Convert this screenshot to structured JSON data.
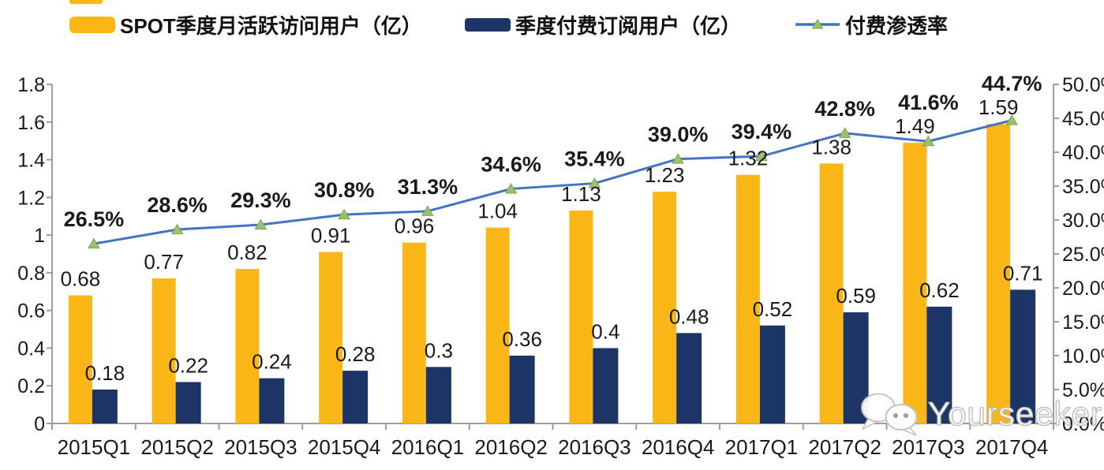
{
  "legend": [
    {
      "label": "SPOT季度月活跃访问用户（亿）",
      "color": "#FBB716",
      "type": "bar"
    },
    {
      "label": "季度付费订阅用户（亿）",
      "color": "#1C3564",
      "type": "bar"
    },
    {
      "label": "付费渗透率",
      "color": "#4472C4",
      "marker_color": "#9CC268",
      "type": "line"
    }
  ],
  "watermark": {
    "text": "Yourseeker"
  },
  "colors": {
    "mau_bar": "#FBB716",
    "sub_bar": "#1C3564",
    "penetration_line": "#4472C4",
    "penetration_marker": "#9CC268",
    "penetration_marker_edge": "#7FA650",
    "axis": "#9E9E9E",
    "label_text": "#1A1A1A"
  },
  "chart_data": {
    "type": "bar",
    "subtype": "grouped-bars-with-line",
    "categories": [
      "2015Q1",
      "2015Q2",
      "2015Q3",
      "2015Q4",
      "2016Q1",
      "2016Q2",
      "2016Q3",
      "2016Q4",
      "2017Q1",
      "2017Q2",
      "2017Q3",
      "2017Q4"
    ],
    "series": [
      {
        "name": "SPOT季度月活跃访问用户（亿）",
        "type": "bar",
        "axis": "left",
        "color": "#FBB716",
        "values": [
          0.68,
          0.77,
          0.82,
          0.91,
          0.96,
          1.04,
          1.13,
          1.23,
          1.32,
          1.38,
          1.49,
          1.59
        ],
        "value_labels": [
          "0.68",
          "0.77",
          "0.82",
          "0.91",
          "0.96",
          "1.04",
          "1.13",
          "1.23",
          "1.32",
          "1.38",
          "1.49",
          "1.59"
        ]
      },
      {
        "name": "季度付费订阅用户（亿）",
        "type": "bar",
        "axis": "left",
        "color": "#1C3564",
        "values": [
          0.18,
          0.22,
          0.24,
          0.28,
          0.3,
          0.36,
          0.4,
          0.48,
          0.52,
          0.59,
          0.62,
          0.71
        ],
        "value_labels": [
          "0.18",
          "0.22",
          "0.24",
          "0.28",
          "0.3",
          "0.36",
          "0.4",
          "0.48",
          "0.52",
          "0.59",
          "0.62",
          "0.71"
        ]
      },
      {
        "name": "付费渗透率",
        "type": "line",
        "axis": "right",
        "color": "#4472C4",
        "marker": "triangle",
        "marker_color": "#9CC268",
        "values": [
          26.5,
          28.6,
          29.3,
          30.8,
          31.3,
          34.6,
          35.4,
          39.0,
          39.4,
          42.8,
          41.6,
          44.7
        ],
        "value_labels": [
          "26.5%",
          "28.6%",
          "29.3%",
          "30.8%",
          "31.3%",
          "34.6%",
          "35.4%",
          "39.0%",
          "39.4%",
          "42.8%",
          "41.6%",
          "44.7%"
        ]
      }
    ],
    "left_axis": {
      "min": 0,
      "max": 1.8,
      "step": 0.2,
      "ticks": [
        "0",
        "0.2",
        "0.4",
        "0.6",
        "0.8",
        "1",
        "1.2",
        "1.4",
        "1.6",
        "1.8"
      ]
    },
    "right_axis": {
      "min": 0,
      "max": 50,
      "step": 5,
      "ticks": [
        "0.0%",
        "5.0%",
        "10.0%",
        "15.0%",
        "20.0%",
        "25.0%",
        "30.0%",
        "35.0%",
        "40.0%",
        "45.0%",
        "50.0%"
      ]
    },
    "grid": false,
    "legend_position": "top"
  }
}
